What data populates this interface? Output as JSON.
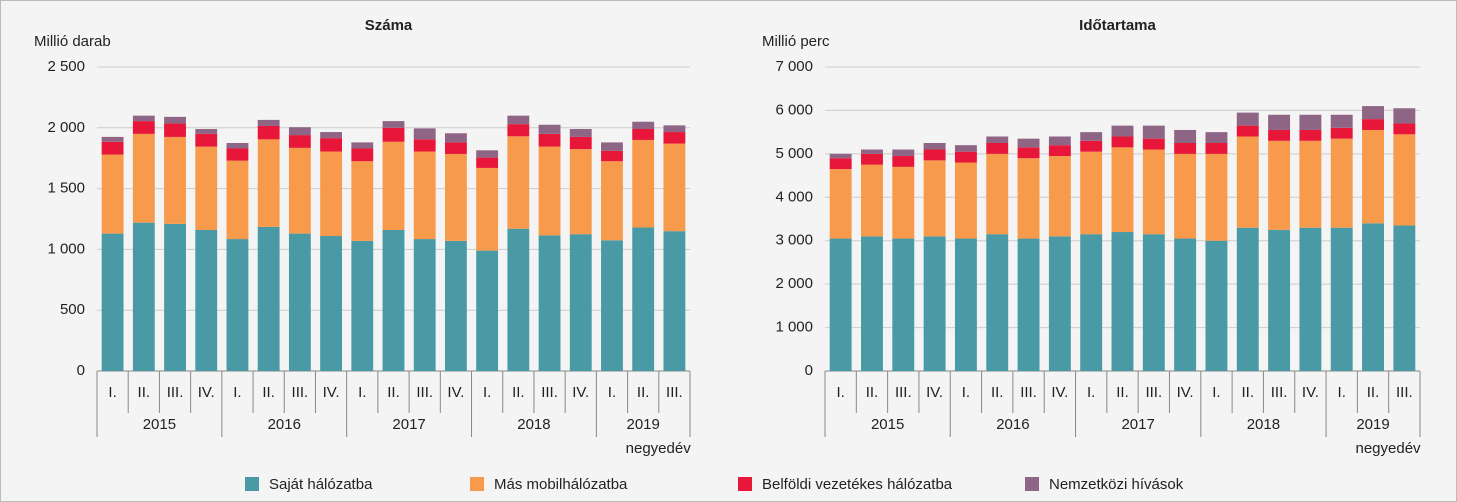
{
  "legend": [
    {
      "name": "Saját hálózatba",
      "color": "#4a9aa5"
    },
    {
      "name": "Más mobilhálózatba",
      "color": "#f79a4b"
    },
    {
      "name": "Belföldi vezetékes hálózatba",
      "color": "#e8173a"
    },
    {
      "name": "Nemzetközi hívások",
      "color": "#8e6585"
    }
  ],
  "chart_data": [
    {
      "type": "bar",
      "stacked": true,
      "title": "Száma",
      "y_label": "Millió darab",
      "x_label": "negyedév",
      "categories": [
        "I.",
        "II.",
        "III.",
        "IV.",
        "I.",
        "II.",
        "III.",
        "IV.",
        "I.",
        "II.",
        "III.",
        "IV.",
        "I.",
        "II.",
        "III.",
        "IV.",
        "I.",
        "II.",
        "III."
      ],
      "groups": [
        "2015",
        "2016",
        "2017",
        "2018",
        "2019"
      ],
      "ylim": [
        0,
        2500
      ],
      "yticks": [
        0,
        500,
        {
          "value": 1000,
          "label": "1 000"
        },
        {
          "value": 1500,
          "label": "1 500"
        },
        {
          "value": 2000,
          "label": "2 000"
        },
        {
          "value": 2500,
          "label": "2 500"
        }
      ],
      "grid": true,
      "series": [
        {
          "values": [
            1130,
            1220,
            1210,
            1160,
            1085,
            1185,
            1130,
            1110,
            1070,
            1160,
            1085,
            1070,
            990,
            1170,
            1115,
            1125,
            1075,
            1180,
            1150
          ]
        },
        {
          "values": [
            650,
            730,
            715,
            685,
            645,
            720,
            705,
            695,
            655,
            725,
            720,
            715,
            680,
            760,
            730,
            700,
            650,
            720,
            720
          ]
        },
        {
          "values": [
            105,
            105,
            110,
            105,
            100,
            110,
            105,
            110,
            105,
            115,
            100,
            95,
            85,
            100,
            105,
            100,
            85,
            90,
            95
          ]
        },
        {
          "values": [
            40,
            45,
            55,
            40,
            45,
            50,
            65,
            50,
            50,
            55,
            90,
            75,
            60,
            70,
            75,
            65,
            70,
            60,
            55
          ]
        }
      ]
    },
    {
      "type": "bar",
      "stacked": true,
      "title": "Időtartama",
      "y_label": "Millió perc",
      "x_label": "negyedév",
      "categories": [
        "I.",
        "II.",
        "III.",
        "IV.",
        "I.",
        "II.",
        "III.",
        "IV.",
        "I.",
        "II.",
        "III.",
        "IV.",
        "I.",
        "II.",
        "III.",
        "IV.",
        "I.",
        "II.",
        "III."
      ],
      "groups": [
        "2015",
        "2016",
        "2017",
        "2018",
        "2019"
      ],
      "ylim": [
        0,
        7000
      ],
      "yticks": [
        0,
        {
          "value": 1000,
          "label": "1 000"
        },
        {
          "value": 2000,
          "label": "2 000"
        },
        {
          "value": 3000,
          "label": "3 000"
        },
        {
          "value": 4000,
          "label": "4 000"
        },
        {
          "value": 5000,
          "label": "5 000"
        },
        {
          "value": 6000,
          "label": "6 000"
        },
        {
          "value": 7000,
          "label": "7 000"
        }
      ],
      "grid": true,
      "series": [
        {
          "values": [
            3050,
            3100,
            3050,
            3100,
            3050,
            3150,
            3050,
            3100,
            3150,
            3200,
            3150,
            3050,
            3000,
            3300,
            3250,
            3300,
            3300,
            3400,
            3350
          ]
        },
        {
          "values": [
            1600,
            1650,
            1650,
            1750,
            1750,
            1850,
            1850,
            1850,
            1900,
            1950,
            1950,
            1950,
            2000,
            2100,
            2050,
            2000,
            2050,
            2150,
            2100
          ]
        },
        {
          "values": [
            250,
            250,
            250,
            250,
            250,
            250,
            250,
            250,
            250,
            250,
            250,
            250,
            250,
            250,
            250,
            250,
            250,
            250,
            250
          ]
        },
        {
          "values": [
            100,
            100,
            150,
            150,
            150,
            150,
            200,
            200,
            200,
            250,
            300,
            300,
            250,
            300,
            350,
            350,
            300,
            300,
            350
          ]
        }
      ]
    }
  ]
}
